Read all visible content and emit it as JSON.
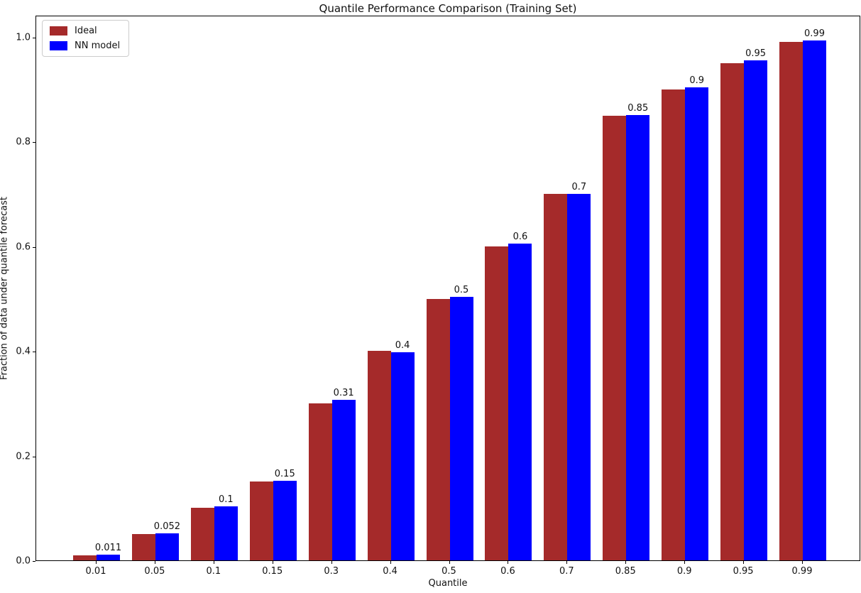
{
  "chart_data": {
    "type": "bar",
    "title": "Quantile Performance Comparison (Training Set)",
    "xlabel": "Quantile",
    "ylabel": "Fraction of data under quantile forecast",
    "categories": [
      "0.01",
      "0.05",
      "0.1",
      "0.15",
      "0.3",
      "0.4",
      "0.5",
      "0.6",
      "0.7",
      "0.85",
      "0.9",
      "0.95",
      "0.99"
    ],
    "series": [
      {
        "name": "Ideal",
        "color": "#a52a2a",
        "values": [
          0.01,
          0.05,
          0.1,
          0.15,
          0.3,
          0.4,
          0.5,
          0.6,
          0.7,
          0.85,
          0.9,
          0.95,
          0.99
        ]
      },
      {
        "name": "NN model",
        "color": "#0000ff",
        "values": [
          0.011,
          0.052,
          0.103,
          0.152,
          0.307,
          0.398,
          0.504,
          0.605,
          0.7,
          0.851,
          0.904,
          0.955,
          0.993
        ]
      }
    ],
    "bar_labels": [
      "0.011",
      "0.052",
      "0.1",
      "0.15",
      "0.31",
      "0.4",
      "0.5",
      "0.6",
      "0.7",
      "0.85",
      "0.9",
      "0.95",
      "0.99"
    ],
    "yticks": [
      "0.0",
      "0.2",
      "0.4",
      "0.6",
      "0.8",
      "1.0"
    ],
    "ylim": [
      0,
      1.042
    ],
    "grid": false,
    "legend_position": "upper left",
    "legend_entries": [
      "Ideal",
      "NN model"
    ]
  }
}
